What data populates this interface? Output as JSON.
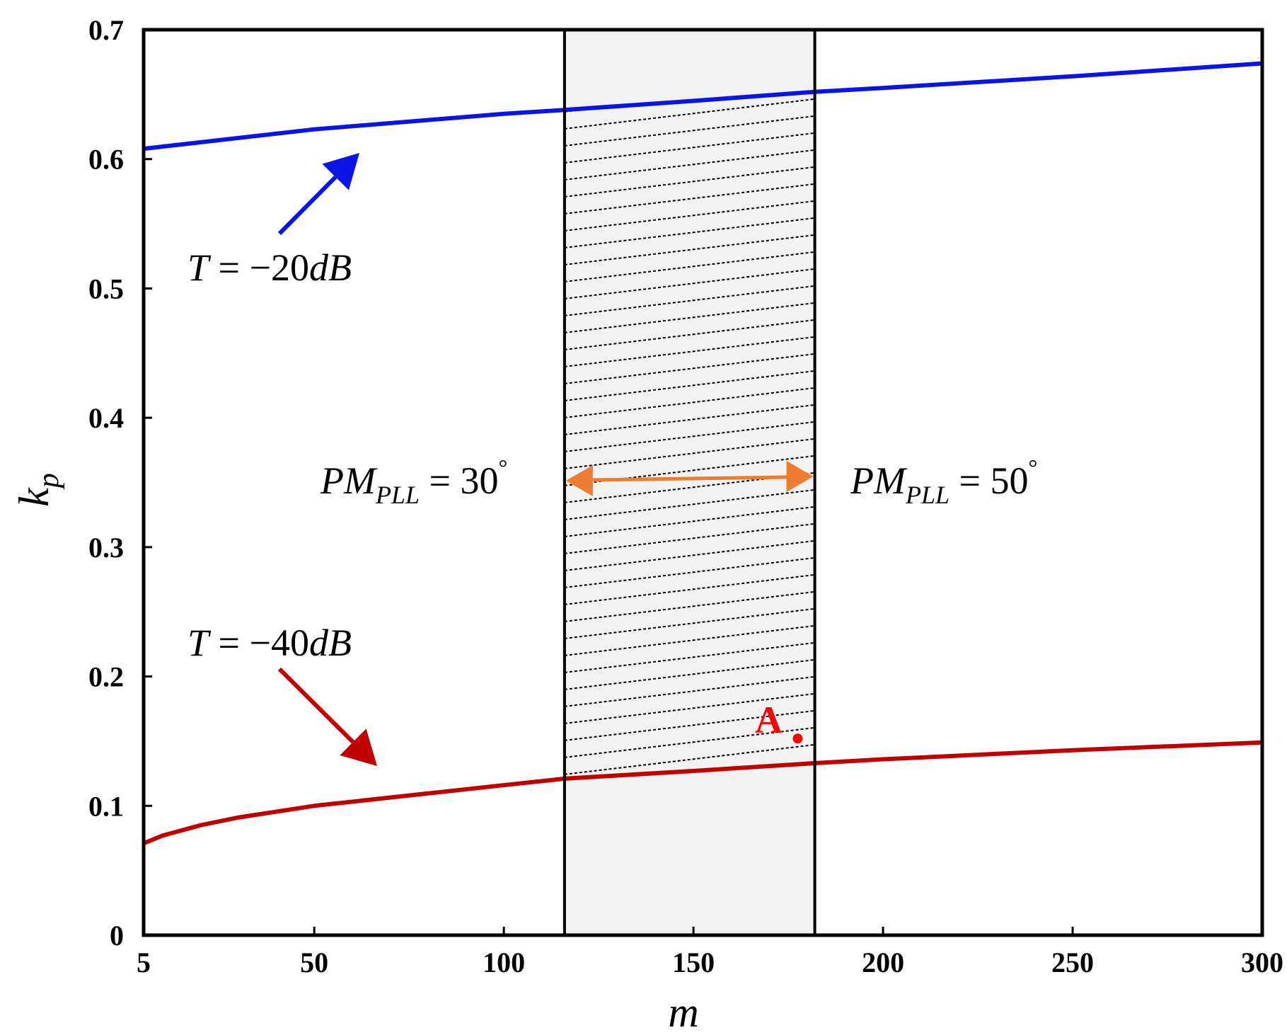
{
  "chart_data": {
    "type": "line",
    "title": "",
    "xlabel": "m",
    "ylabel_main": "k",
    "ylabel_sub": "p",
    "xlim": [
      5,
      300
    ],
    "ylim": [
      0,
      0.7
    ],
    "x_ticks": [
      5,
      50,
      100,
      150,
      200,
      250,
      300
    ],
    "y_ticks": [
      0,
      0.1,
      0.2,
      0.3,
      0.4,
      0.5,
      0.6,
      0.7
    ],
    "x_tick_labels": [
      "5",
      "50",
      "100",
      "150",
      "200",
      "250",
      "300"
    ],
    "y_tick_labels": [
      "0",
      "0.1",
      "0.2",
      "0.3",
      "0.4",
      "0.5",
      "0.6",
      "0.7"
    ],
    "grid": false,
    "series": [
      {
        "name": "T = -20dB",
        "color": "#0a14e6",
        "x": [
          5,
          50,
          100,
          116,
          150,
          182,
          200,
          250,
          300
        ],
        "values": [
          0.608,
          0.623,
          0.635,
          0.638,
          0.645,
          0.652,
          0.655,
          0.664,
          0.674
        ]
      },
      {
        "name": "T = -40dB",
        "color": "#c00000",
        "x": [
          5,
          10,
          20,
          30,
          50,
          75,
          100,
          116,
          150,
          182,
          200,
          250,
          300
        ],
        "values": [
          0.071,
          0.077,
          0.085,
          0.091,
          0.1,
          0.108,
          0.116,
          0.121,
          0.127,
          0.133,
          0.136,
          0.143,
          0.149
        ]
      }
    ],
    "region": {
      "x_start": 116,
      "x_end": 182,
      "fill_color": "#f2f2f2",
      "label_left_main": "PM",
      "label_left_sub": "PLL",
      "label_left_value": " = 30",
      "label_right_main": "PM",
      "label_right_sub": "PLL",
      "label_right_value": " = 50",
      "degree_symbol": "°",
      "arrow_color": "#ed7d31"
    },
    "annotations": [
      {
        "label_main": "T",
        "label_rest": " = −20",
        "label_unit": "dB",
        "color": "#0a14e6"
      },
      {
        "label_main": "T",
        "label_rest": " = −40",
        "label_unit": "dB",
        "color": "#c00000"
      }
    ],
    "point": {
      "label": "A",
      "x": 177.5,
      "y": 0.152,
      "color": "#ff0000"
    }
  }
}
